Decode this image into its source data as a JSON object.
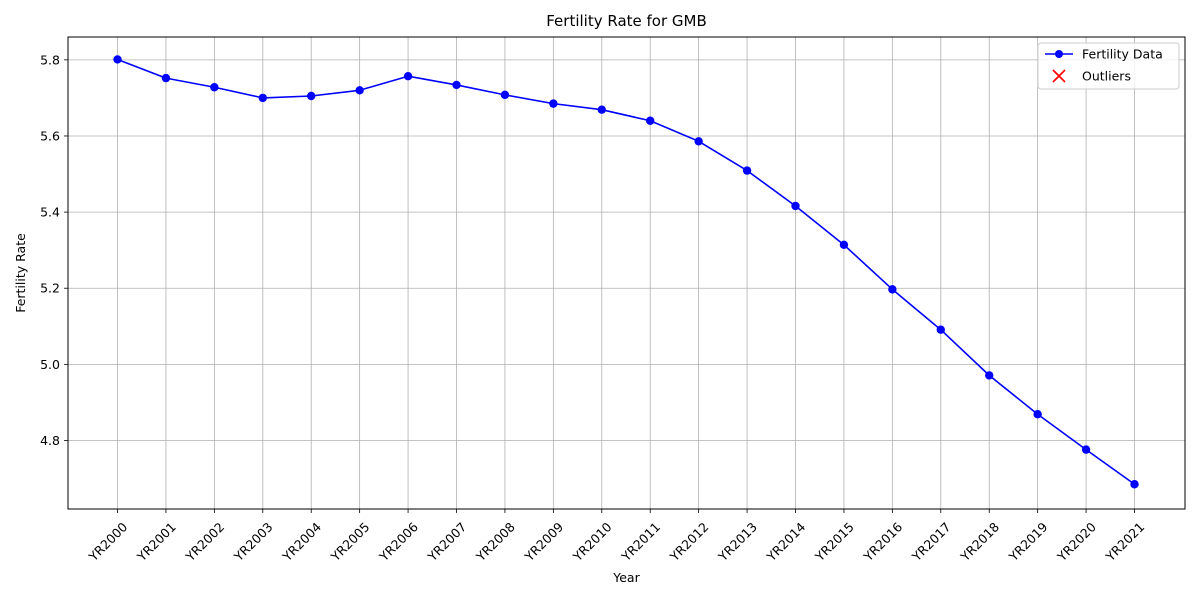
{
  "chart_data": {
    "type": "line",
    "title": "Fertility Rate for GMB",
    "xlabel": "Year",
    "ylabel": "Fertility Rate",
    "categories": [
      "YR2000",
      "YR2001",
      "YR2002",
      "YR2003",
      "YR2004",
      "YR2005",
      "YR2006",
      "YR2007",
      "YR2008",
      "YR2009",
      "YR2010",
      "YR2011",
      "YR2012",
      "YR2013",
      "YR2014",
      "YR2015",
      "YR2016",
      "YR2017",
      "YR2018",
      "YR2019",
      "YR2020",
      "YR2021"
    ],
    "series": [
      {
        "name": "Fertility Data",
        "color": "#0000ff",
        "marker": "circle",
        "values": [
          5.801,
          5.752,
          5.728,
          5.7,
          5.705,
          5.72,
          5.757,
          5.734,
          5.708,
          5.685,
          5.669,
          5.64,
          5.586,
          5.509,
          5.416,
          5.314,
          5.197,
          5.091,
          4.971,
          4.869,
          4.776,
          4.685
        ]
      }
    ],
    "outliers": {
      "name": "Outliers",
      "color": "#ff0000",
      "marker": "x",
      "points": []
    },
    "ylim": [
      4.62,
      5.86
    ],
    "yticks": [
      4.8,
      5.0,
      5.2,
      5.4,
      5.6,
      5.8
    ],
    "ytick_labels": [
      "4.8",
      "5.0",
      "5.2",
      "5.4",
      "5.6",
      "5.8"
    ],
    "grid": true,
    "legend": "top-right"
  }
}
